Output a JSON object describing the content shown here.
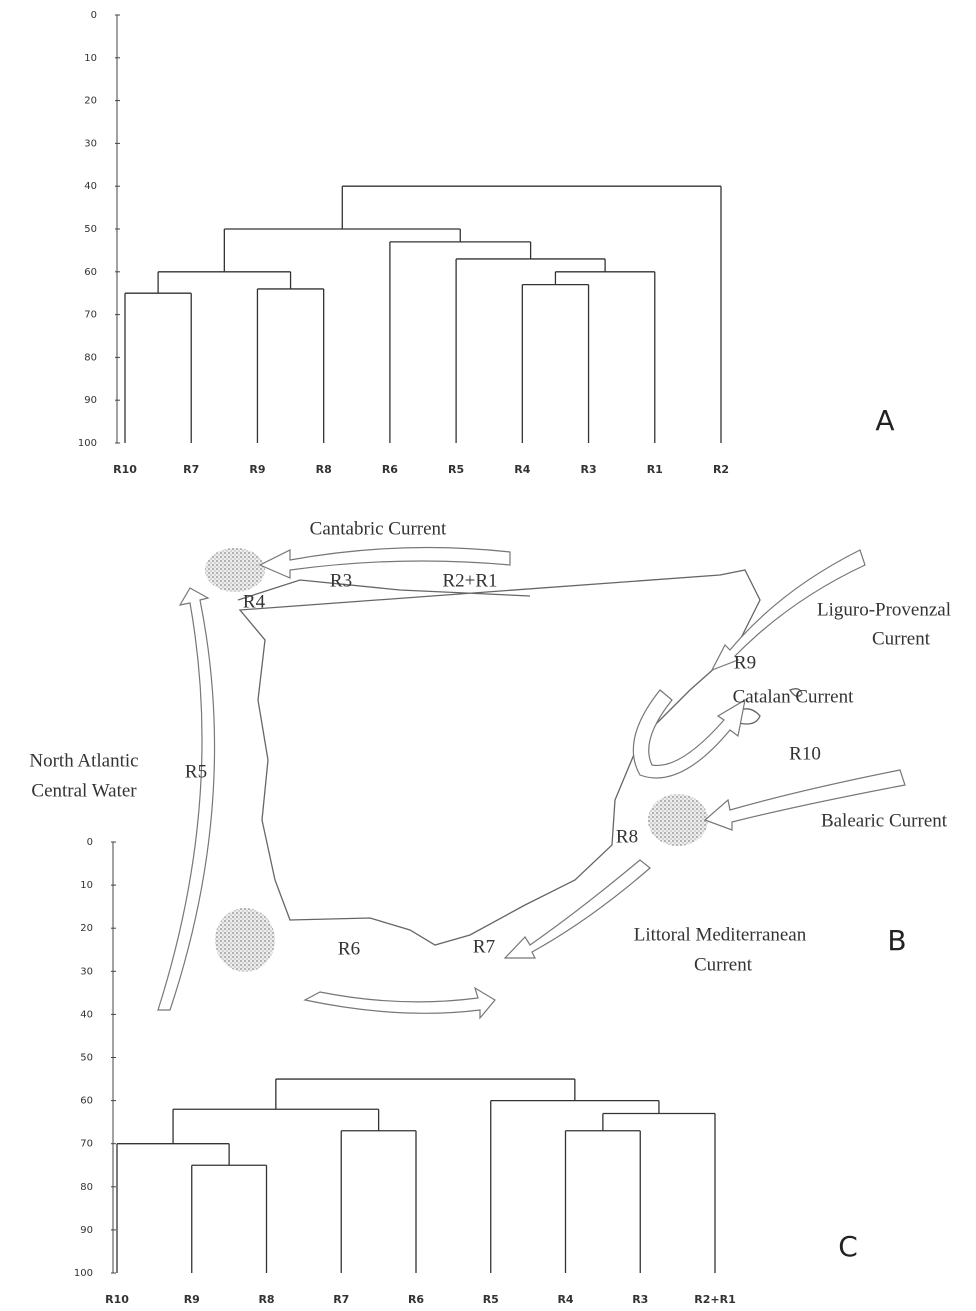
{
  "chart_data": [
    {
      "type": "dendrogram",
      "panel": "A",
      "ylim": [
        0,
        100
      ],
      "yticks": [
        0,
        10,
        20,
        30,
        40,
        50,
        60,
        70,
        80,
        90,
        100
      ],
      "tree": {
        "height": 40,
        "children": [
          {
            "height": 50,
            "children": [
              {
                "height": 60,
                "children": [
                  {
                    "height": 65,
                    "children": [
                      "R10",
                      "R7"
                    ]
                  },
                  {
                    "height": 64,
                    "children": [
                      "R9",
                      "R8"
                    ]
                  }
                ]
              },
              {
                "height": 53,
                "children": [
                  "R6",
                  {
                    "height": 57,
                    "children": [
                      "R5",
                      {
                        "height": 60,
                        "children": [
                          {
                            "height": 63,
                            "children": [
                              "R4",
                              "R3"
                            ]
                          },
                          "R1"
                        ]
                      }
                    ]
                  }
                ]
              }
            ]
          },
          "R2"
        ]
      }
    },
    {
      "type": "dendrogram",
      "panel": "C",
      "ylim": [
        0,
        100
      ],
      "yticks": [
        0,
        10,
        20,
        30,
        40,
        50,
        60,
        70,
        80,
        90,
        100
      ],
      "tree": {
        "height": 55,
        "children": [
          {
            "height": 62,
            "children": [
              {
                "height": 70,
                "children": [
                  "R10",
                  {
                    "height": 75,
                    "children": [
                      "R9",
                      "R8"
                    ]
                  }
                ]
              },
              {
                "height": 67,
                "children": [
                  "R7",
                  "R6"
                ]
              }
            ]
          },
          {
            "height": 60,
            "children": [
              "R5",
              {
                "height": 63,
                "children": [
                  {
                    "height": 67,
                    "children": [
                      "R4",
                      "R3"
                    ]
                  },
                  "R2+R1"
                ]
              }
            ]
          }
        ]
      }
    }
  ],
  "map": {
    "panel": "B",
    "labels": [
      "Cantabric Current",
      "R3",
      "R2+R1",
      "R4",
      "Liguro-Provenzal",
      "Current",
      "R9",
      "Catalan Current",
      "R10",
      "North Atlantic",
      "Central Water",
      "R5",
      "Balearic Current",
      "R8",
      "Littoral Mediterranean",
      "Current",
      "R6",
      "R7"
    ]
  }
}
